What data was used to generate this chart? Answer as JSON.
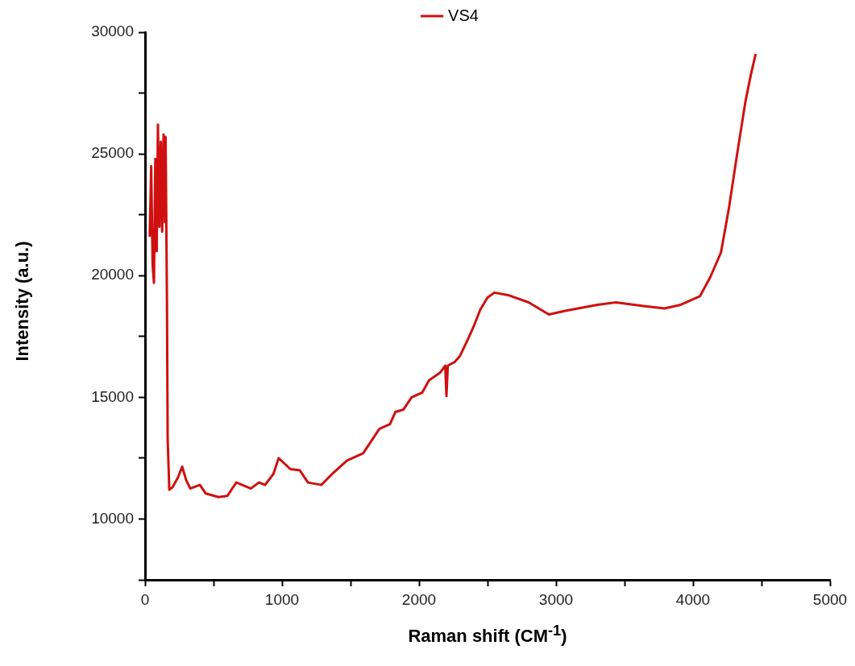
{
  "chart_data": {
    "type": "line",
    "xlabel": "Raman shift (CM$^{-1}$)",
    "ylabel": "Intensity (a.u.)",
    "xlim": [
      0,
      5000
    ],
    "xticks": [
      0,
      {
        "value": 500,
        "label": null
      },
      1000,
      {
        "value": 1500,
        "label": null
      },
      2000,
      {
        "value": 2500,
        "label": null
      },
      3000,
      {
        "value": 3500,
        "label": null
      },
      4000,
      {
        "value": 4500,
        "label": null
      },
      5000
    ],
    "ylim": [
      7500,
      30000
    ],
    "yticks": [
      {
        "value": 7500,
        "label": null
      },
      10000,
      {
        "value": 12500,
        "label": null
      },
      15000,
      {
        "value": 17500,
        "label": null
      },
      20000,
      {
        "value": 22500,
        "label": null
      },
      25000,
      {
        "value": 27500,
        "label": null
      },
      30000
    ],
    "grid": false,
    "legend": "top",
    "marker": "none",
    "line_style": "solid",
    "series": [
      {
        "name": "VS4",
        "color": "#d01010",
        "x": [
          34,
          45,
          55,
          65,
          75,
          85,
          94,
          105,
          115,
          125,
          135,
          145,
          150,
          160,
          165,
          177,
          200,
          240,
          271,
          300,
          330,
          400,
          442,
          537,
          601,
          666,
          772,
          831,
          876,
          937,
          975,
          1061,
          1130,
          1189,
          1287,
          1375,
          1474,
          1592,
          1710,
          1788,
          1828,
          1887,
          1946,
          2024,
          2073,
          2152,
          2191,
          2200,
          2210,
          2260,
          2299,
          2358,
          2398,
          2447,
          2500,
          2550,
          2650,
          2800,
          2948,
          3066,
          3302,
          3437,
          3638,
          3792,
          3910,
          4050,
          4127,
          4204,
          4263,
          4322,
          4381,
          4422,
          4457
        ],
        "values": [
          21600,
          24500,
          20500,
          19700,
          24800,
          21000,
          26200,
          22000,
          25500,
          21800,
          25800,
          22200,
          25700,
          18900,
          13300,
          11200,
          11300,
          11700,
          12150,
          11600,
          11250,
          11400,
          11050,
          10900,
          10950,
          11500,
          11250,
          11500,
          11400,
          11850,
          12500,
          12050,
          12000,
          11500,
          11400,
          11900,
          12400,
          12700,
          13700,
          13900,
          14400,
          14500,
          15000,
          15200,
          15700,
          16000,
          16300,
          15050,
          16300,
          16450,
          16700,
          17400,
          17900,
          18600,
          19100,
          19300,
          19200,
          18900,
          18400,
          18550,
          18800,
          18900,
          18750,
          18650,
          18800,
          19150,
          19950,
          20950,
          22800,
          25000,
          27100,
          28250,
          29100
        ]
      }
    ]
  }
}
